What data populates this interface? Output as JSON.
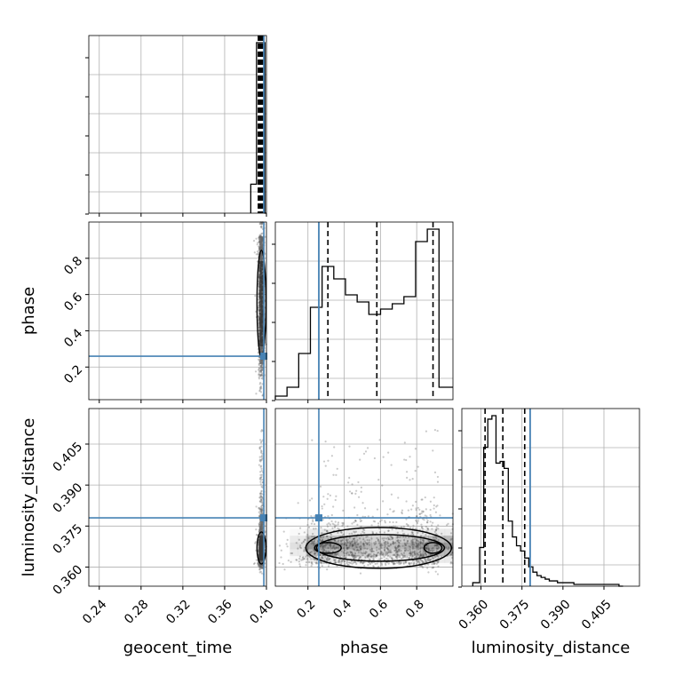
{
  "chart_data": {
    "type": "corner",
    "parameters": [
      "geocent_time",
      "phase",
      "luminosity_distance"
    ],
    "truth": {
      "geocent_time": 0.3975,
      "phase": 0.26,
      "luminosity_distance": 0.378
    },
    "colors": {
      "truth": "#4682b4",
      "hist": "#000000",
      "grid": "#b0b0b0",
      "points": "#666666"
    },
    "ranges": {
      "geocent_time": [
        0.23,
        0.4
      ],
      "phase": [
        0.02,
        1.0
      ],
      "luminosity_distance": [
        0.353,
        0.418
      ]
    },
    "ticks": {
      "geocent_time": [
        "0.24",
        "0.28",
        "0.32",
        "0.36",
        "0.40"
      ],
      "phase": [
        "0.2",
        "0.4",
        "0.6",
        "0.8"
      ],
      "luminosity_distance": [
        "0.360",
        "0.375",
        "0.390",
        "0.405"
      ]
    },
    "axis_labels": {
      "x": [
        "geocent_time",
        "phase",
        "luminosity_distance"
      ],
      "y": [
        "phase",
        "luminosity_distance"
      ]
    },
    "histograms": {
      "geocent_time": {
        "bin_edges": [
          0.385,
          0.3905,
          0.3945,
          0.3985,
          0.4
        ],
        "values": [
          0.17,
          1.0,
          1.0,
          0.0
        ],
        "quantiles": [
          0.3935,
          0.3955
        ]
      },
      "phase": {
        "bin_edges": [
          0.02,
          0.0845,
          0.149,
          0.2135,
          0.278,
          0.3425,
          0.407,
          0.4715,
          0.536,
          0.6005,
          0.665,
          0.7295,
          0.794,
          0.8585,
          0.923,
          0.9875,
          1.0
        ],
        "values": [
          0.02,
          0.07,
          0.26,
          0.52,
          0.75,
          0.68,
          0.59,
          0.55,
          0.48,
          0.51,
          0.54,
          0.58,
          0.89,
          0.96,
          0.07,
          0.07
        ],
        "quantiles": [
          0.31,
          0.58,
          0.89
        ]
      },
      "luminosity_distance": {
        "bin_edges": [
          0.357,
          0.3595,
          0.361,
          0.3625,
          0.364,
          0.3655,
          0.367,
          0.3685,
          0.37,
          0.3715,
          0.373,
          0.3745,
          0.376,
          0.3775,
          0.379,
          0.3805,
          0.382,
          0.3835,
          0.385,
          0.3865,
          0.388,
          0.3895,
          0.391,
          0.3925,
          0.394,
          0.3955,
          0.397,
          0.3985,
          0.4,
          0.4015,
          0.403,
          0.4045,
          0.406,
          0.4075,
          0.409,
          0.4105,
          0.412
        ],
        "values": [
          0.02,
          0.22,
          0.79,
          0.95,
          0.97,
          0.7,
          0.71,
          0.67,
          0.37,
          0.28,
          0.23,
          0.2,
          0.16,
          0.11,
          0.08,
          0.06,
          0.05,
          0.04,
          0.03,
          0.03,
          0.02,
          0.02,
          0.02,
          0.02,
          0.01,
          0.01,
          0.01,
          0.01,
          0.01,
          0.01,
          0.01,
          0.01,
          0.01,
          0.01,
          0.01,
          0.0
        ],
        "quantiles": [
          0.3615,
          0.368,
          0.376
        ]
      }
    }
  }
}
